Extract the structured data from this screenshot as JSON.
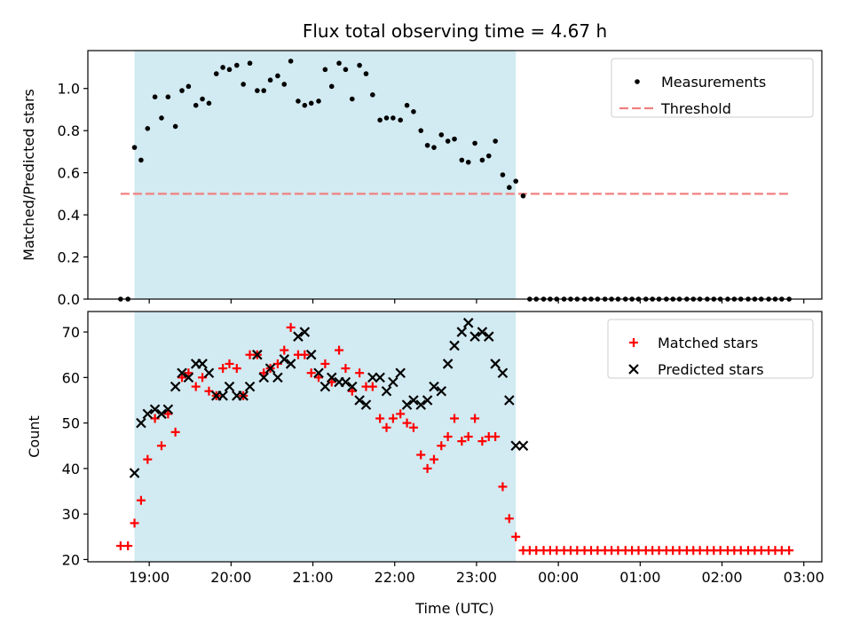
{
  "title": "Flux total observing time = 4.67 h",
  "colors": {
    "shade": "#add8e6",
    "measurement": "#000000",
    "threshold": "#f08080",
    "matched": "#ff0000",
    "predicted": "#000000"
  },
  "chart_data": [
    {
      "type": "scatter",
      "panel": "top",
      "ylabel": "Matched/Predicted stars",
      "xlabel": "",
      "ylim": [
        0,
        1.18
      ],
      "yticks": [
        0.0,
        0.2,
        0.4,
        0.6,
        0.8,
        1.0
      ],
      "ytick_labels": [
        "0.0",
        "0.2",
        "0.4",
        "0.6",
        "0.8",
        "1.0"
      ],
      "xlim": [
        18.25,
        27.22
      ],
      "xticks": [
        19,
        20,
        21,
        22,
        23,
        24,
        25,
        26,
        27
      ],
      "shaded_span": [
        18.82,
        23.48
      ],
      "threshold": {
        "value": 0.5,
        "x_range": [
          18.65,
          26.82
        ]
      },
      "legend": {
        "position": "top-right",
        "entries": [
          "Measurements",
          "Threshold"
        ]
      },
      "series": [
        {
          "name": "Measurements",
          "marker": "dot",
          "x": [
            18.65,
            18.74,
            18.82,
            18.9,
            18.98,
            19.07,
            19.15,
            19.23,
            19.32,
            19.4,
            19.48,
            19.57,
            19.65,
            19.73,
            19.82,
            19.9,
            19.98,
            20.07,
            20.15,
            20.23,
            20.32,
            20.4,
            20.48,
            20.57,
            20.65,
            20.73,
            20.82,
            20.9,
            20.98,
            21.07,
            21.15,
            21.23,
            21.32,
            21.4,
            21.48,
            21.57,
            21.65,
            21.73,
            21.82,
            21.9,
            21.98,
            22.07,
            22.15,
            22.23,
            22.32,
            22.4,
            22.48,
            22.57,
            22.65,
            22.73,
            22.82,
            22.9,
            22.98,
            23.07,
            23.15,
            23.23,
            23.32,
            23.4,
            23.48,
            23.57,
            23.65,
            23.73,
            23.82,
            23.9,
            23.98,
            24.07,
            24.15,
            24.23,
            24.32,
            24.4,
            24.48,
            24.57,
            24.65,
            24.73,
            24.82,
            24.9,
            24.98,
            25.07,
            25.15,
            25.23,
            25.32,
            25.4,
            25.48,
            25.57,
            25.65,
            25.73,
            25.82,
            25.9,
            25.98,
            26.07,
            26.15,
            26.23,
            26.32,
            26.4,
            26.48,
            26.57,
            26.65,
            26.73,
            26.82
          ],
          "y": [
            0.0,
            0.0,
            0.72,
            0.66,
            0.81,
            0.96,
            0.86,
            0.96,
            0.82,
            0.99,
            1.01,
            0.92,
            0.95,
            0.93,
            1.07,
            1.1,
            1.09,
            1.11,
            1.02,
            1.12,
            0.99,
            0.99,
            1.04,
            1.06,
            1.02,
            1.13,
            0.94,
            0.92,
            0.93,
            0.94,
            1.09,
            1.01,
            1.12,
            1.09,
            0.95,
            1.11,
            1.07,
            0.97,
            0.85,
            0.86,
            0.86,
            0.85,
            0.92,
            0.89,
            0.8,
            0.73,
            0.72,
            0.78,
            0.75,
            0.76,
            0.66,
            0.65,
            0.74,
            0.66,
            0.68,
            0.75,
            0.59,
            0.53,
            0.56,
            0.49,
            0.0,
            0.0,
            0.0,
            0.0,
            0.0,
            0.0,
            0.0,
            0.0,
            0.0,
            0.0,
            0.0,
            0.0,
            0.0,
            0.0,
            0.0,
            0.0,
            0.0,
            0.0,
            0.0,
            0.0,
            0.0,
            0.0,
            0.0,
            0.0,
            0.0,
            0.0,
            0.0,
            0.0,
            0.0,
            0.0,
            0.0,
            0.0,
            0.0,
            0.0,
            0.0,
            0.0,
            0.0,
            0.0,
            0.0
          ]
        }
      ]
    },
    {
      "type": "scatter",
      "panel": "bottom",
      "ylabel": "Count",
      "xlabel": "Time (UTC)",
      "ylim": [
        19.5,
        74.5
      ],
      "yticks": [
        20,
        30,
        40,
        50,
        60,
        70
      ],
      "ytick_labels": [
        "20",
        "30",
        "40",
        "50",
        "60",
        "70"
      ],
      "xlim": [
        18.25,
        27.22
      ],
      "xticks": [
        19,
        20,
        21,
        22,
        23,
        24,
        25,
        26,
        27
      ],
      "xtick_labels": [
        "19:00",
        "20:00",
        "21:00",
        "22:00",
        "23:00",
        "00:00",
        "01:00",
        "02:00",
        "03:00"
      ],
      "shaded_span": [
        18.82,
        23.48
      ],
      "legend": {
        "position": "top-right",
        "entries": [
          "Matched stars",
          "Predicted stars"
        ]
      },
      "series": [
        {
          "name": "Matched stars",
          "marker": "plus",
          "x": [
            18.65,
            18.74,
            18.82,
            18.9,
            18.98,
            19.07,
            19.15,
            19.23,
            19.32,
            19.4,
            19.48,
            19.57,
            19.65,
            19.73,
            19.82,
            19.9,
            19.98,
            20.07,
            20.15,
            20.23,
            20.32,
            20.4,
            20.48,
            20.57,
            20.65,
            20.73,
            20.82,
            20.9,
            20.98,
            21.07,
            21.15,
            21.23,
            21.32,
            21.4,
            21.48,
            21.57,
            21.65,
            21.73,
            21.82,
            21.9,
            21.98,
            22.07,
            22.15,
            22.23,
            22.32,
            22.4,
            22.48,
            22.57,
            22.65,
            22.73,
            22.82,
            22.9,
            22.98,
            23.07,
            23.15,
            23.23,
            23.32,
            23.4,
            23.48,
            23.57,
            23.65,
            23.73,
            23.82,
            23.9,
            23.98,
            24.07,
            24.15,
            24.23,
            24.32,
            24.4,
            24.48,
            24.57,
            24.65,
            24.73,
            24.82,
            24.9,
            24.98,
            25.07,
            25.15,
            25.23,
            25.32,
            25.4,
            25.48,
            25.57,
            25.65,
            25.73,
            25.82,
            25.9,
            25.98,
            26.07,
            26.15,
            26.23,
            26.32,
            26.4,
            26.48,
            26.57,
            26.65,
            26.73,
            26.82
          ],
          "y": [
            23,
            23,
            28,
            33,
            42,
            51,
            45,
            52,
            48,
            60,
            61,
            58,
            60,
            57,
            56,
            62,
            63,
            62,
            56,
            65,
            65,
            61,
            62,
            63,
            66,
            71,
            65,
            65,
            61,
            60,
            63,
            59,
            66,
            62,
            57,
            61,
            58,
            58,
            51,
            49,
            51,
            52,
            50,
            49,
            43,
            40,
            42,
            45,
            47,
            51,
            46,
            47,
            51,
            46,
            47,
            47,
            36,
            29,
            25,
            22,
            22,
            22,
            22,
            22,
            22,
            22,
            22,
            22,
            22,
            22,
            22,
            22,
            22,
            22,
            22,
            22,
            22,
            22,
            22,
            22,
            22,
            22,
            22,
            22,
            22,
            22,
            22,
            22,
            22,
            22,
            22,
            22,
            22,
            22,
            22,
            22,
            22,
            22,
            22
          ]
        },
        {
          "name": "Predicted stars",
          "marker": "x",
          "x": [
            18.82,
            18.9,
            18.98,
            19.07,
            19.15,
            19.23,
            19.32,
            19.4,
            19.48,
            19.57,
            19.65,
            19.73,
            19.82,
            19.9,
            19.98,
            20.07,
            20.15,
            20.23,
            20.32,
            20.4,
            20.48,
            20.57,
            20.65,
            20.73,
            20.82,
            20.9,
            20.98,
            21.07,
            21.15,
            21.23,
            21.32,
            21.4,
            21.48,
            21.57,
            21.65,
            21.73,
            21.82,
            21.9,
            21.98,
            22.07,
            22.15,
            22.23,
            22.32,
            22.4,
            22.48,
            22.57,
            22.65,
            22.73,
            22.82,
            22.9,
            22.98,
            23.07,
            23.15,
            23.23,
            23.32,
            23.4,
            23.48,
            23.57
          ],
          "y": [
            39,
            50,
            52,
            53,
            52,
            53,
            58,
            61,
            60,
            63,
            63,
            61,
            56,
            56,
            58,
            56,
            56,
            58,
            65,
            60,
            62,
            60,
            64,
            63,
            69,
            70,
            65,
            61,
            58,
            60,
            59,
            59,
            58,
            55,
            54,
            60,
            60,
            57,
            59,
            61,
            54,
            55,
            54,
            55,
            58,
            57,
            63,
            67,
            70,
            72,
            69,
            70,
            69,
            63,
            61,
            55,
            45,
            45
          ]
        }
      ]
    }
  ]
}
